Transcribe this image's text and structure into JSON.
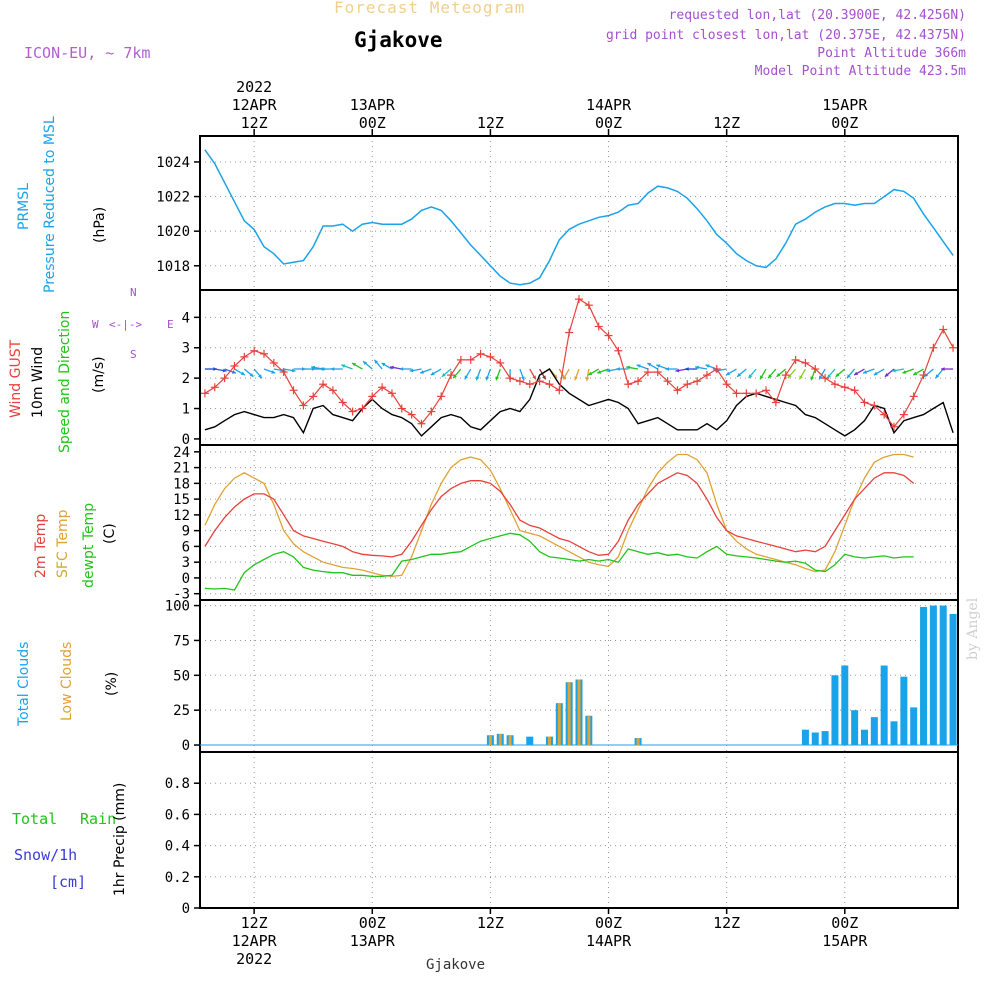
{
  "header": {
    "subtitle": "Forecast Meteogram",
    "title": "Gjakove",
    "model": "ICON-EU, ~ 7km",
    "requested": "requested lon,lat (20.3900E, 42.4256N)",
    "gridpoint": "grid point closest lon,lat (20.375E, 42.4375N)",
    "point_alt": "Point Altitude 366m",
    "model_alt": "Model Point Altitude 423.5m",
    "credit": "by Angel",
    "station": "Gjakove"
  },
  "time_axis": {
    "top_labels": [
      {
        "h": 12,
        "lines": [
          "2022",
          "12APR",
          "12Z"
        ]
      },
      {
        "h": 24,
        "lines": [
          "13APR",
          "00Z"
        ]
      },
      {
        "h": 36,
        "lines": [
          "12Z"
        ]
      },
      {
        "h": 48,
        "lines": [
          "14APR",
          "00Z"
        ]
      },
      {
        "h": 60,
        "lines": [
          "12Z"
        ]
      },
      {
        "h": 72,
        "lines": [
          "15APR",
          "00Z"
        ]
      }
    ],
    "bottom_labels": [
      {
        "h": 12,
        "lines": [
          "12Z",
          "12APR",
          "2022"
        ]
      },
      {
        "h": 24,
        "lines": [
          "00Z",
          "13APR"
        ]
      },
      {
        "h": 36,
        "lines": [
          "12Z"
        ]
      },
      {
        "h": 48,
        "lines": [
          "00Z",
          "14APR"
        ]
      },
      {
        "h": 60,
        "lines": [
          "12Z"
        ]
      },
      {
        "h": 72,
        "lines": [
          "00Z",
          "15APR"
        ]
      }
    ],
    "range_hours": [
      6.5,
      83.5
    ]
  },
  "panel_labels": {
    "pressure": {
      "name": "PRMSL",
      "desc": "Pressure Reduced to MSL",
      "unit": "(hPa)"
    },
    "wind": {
      "gust": "Wind GUST",
      "wind10": "10m Wind",
      "dir": "Speed and Direction",
      "unit": "(m/s)",
      "compass_n": "N",
      "compass_s": "S",
      "compass_w": "W",
      "compass_e": "E",
      "compass_mid": "<-|->"
    },
    "temp": {
      "t2m": "2m Temp",
      "sfc": "SFC Temp",
      "dewpt": "dewpt Temp",
      "unit": "(C)"
    },
    "clouds": {
      "total": "Total Clouds",
      "low": "Low Clouds",
      "unit": "(%)"
    },
    "precip": {
      "rain_a": "Total",
      "rain_b": "Rain",
      "snow": "Snow/1h",
      "snow_unit": "[cm]",
      "label": "1hr Precip (mm)"
    }
  },
  "colors": {
    "pressure": "#1aa3e8",
    "gust": "#e8413c",
    "wind": "#000000",
    "t2m": "#e8413c",
    "sfc": "#dfa234",
    "dew": "#22c31a",
    "total_cloud": "#1aa3e8",
    "low_cloud": "#dfa234",
    "label_pressure": "#1aa3e8",
    "label_wind_gust": "#e8413c",
    "label_wind_dir": "#22c31a",
    "label_temp": "#e8413c",
    "label_sfc": "#dfa234",
    "label_dew": "#22c31a",
    "label_total_cloud": "#1aa3e8",
    "label_low_cloud": "#dfa234",
    "label_rain": "#22c31a",
    "label_snow": "#3b3bd8",
    "label_compass": "#a64fd0"
  },
  "chart_data": [
    {
      "type": "line",
      "name": "pressure",
      "ylabel": "PRMSL Pressure Reduced to MSL (hPa)",
      "ylim": [
        1016.6,
        1025.5
      ],
      "yticks": [
        1018,
        1020,
        1022,
        1024
      ],
      "x_hours": [
        7,
        8,
        9,
        10,
        11,
        12,
        13,
        14,
        15,
        16,
        17,
        18,
        19,
        20,
        21,
        22,
        23,
        24,
        25,
        26,
        27,
        28,
        29,
        30,
        31,
        32,
        33,
        34,
        35,
        36,
        37,
        38,
        39,
        40,
        41,
        42,
        43,
        44,
        45,
        46,
        47,
        48,
        49,
        50,
        51,
        52,
        53,
        54,
        55,
        56,
        57,
        58,
        59,
        60,
        61,
        62,
        63,
        64,
        65,
        66,
        67,
        68,
        69,
        70,
        71,
        72,
        73,
        74,
        75,
        76,
        77,
        78,
        79,
        80,
        81,
        82,
        83
      ],
      "series": [
        {
          "values": [
            1024.7,
            1023.9,
            1022.8,
            1021.7,
            1020.6,
            1020.1,
            1019.1,
            1018.7,
            1018.1,
            1018.2,
            1018.3,
            1019.1,
            1020.3,
            1020.3,
            1020.4,
            1020.0,
            1020.4,
            1020.5,
            1020.4,
            1020.4,
            1020.4,
            1020.7,
            1021.2,
            1021.4,
            1021.2,
            1020.6,
            1019.9,
            1019.2,
            1018.6,
            1018.0,
            1017.4,
            1017.0,
            1016.9,
            1017.0,
            1017.3,
            1018.3,
            1019.5,
            1020.1,
            1020.4,
            1020.6,
            1020.8,
            1020.9,
            1021.1,
            1021.5,
            1021.6,
            1022.2,
            1022.6,
            1022.5,
            1022.3,
            1021.9,
            1021.3,
            1020.6,
            1019.8,
            1019.3,
            1018.7,
            1018.3,
            1018.0,
            1017.9,
            1018.4,
            1019.3,
            1020.4,
            1020.7,
            1021.1,
            1021.4,
            1021.6,
            1021.6,
            1021.5,
            1021.6,
            1021.6,
            1022.0,
            1022.4,
            1022.3,
            1021.9,
            1021.0,
            1020.2,
            1019.4,
            1018.6
          ]
        }
      ]
    },
    {
      "type": "line",
      "name": "wind",
      "ylabel": "Wind GUST / 10m Wind (m/s)",
      "ylim": [
        -0.2,
        4.9
      ],
      "yticks": [
        0,
        1,
        2,
        3,
        4
      ],
      "x_hours": [
        7,
        8,
        9,
        10,
        11,
        12,
        13,
        14,
        15,
        16,
        17,
        18,
        19,
        20,
        21,
        22,
        23,
        24,
        25,
        26,
        27,
        28,
        29,
        30,
        31,
        32,
        33,
        34,
        35,
        36,
        37,
        38,
        39,
        40,
        41,
        42,
        43,
        44,
        45,
        46,
        47,
        48,
        49,
        50,
        51,
        52,
        53,
        54,
        55,
        56,
        57,
        58,
        59,
        60,
        61,
        62,
        63,
        64,
        65,
        66,
        67,
        68,
        69,
        70,
        71,
        72,
        73,
        74,
        75,
        76,
        77,
        78,
        79,
        80,
        81,
        82,
        83
      ],
      "series": [
        {
          "name": "Wind GUST",
          "values": [
            1.5,
            1.7,
            2.0,
            2.4,
            2.7,
            2.9,
            2.8,
            2.5,
            2.2,
            1.6,
            1.1,
            1.4,
            1.8,
            1.6,
            1.2,
            0.9,
            1.0,
            1.4,
            1.7,
            1.5,
            1.0,
            0.8,
            0.5,
            0.9,
            1.4,
            2.1,
            2.6,
            2.6,
            2.8,
            2.7,
            2.5,
            2.0,
            1.9,
            1.8,
            1.9,
            1.8,
            1.6,
            3.5,
            4.6,
            4.4,
            3.7,
            3.4,
            2.9,
            1.8,
            1.9,
            2.2,
            2.2,
            1.9,
            1.6,
            1.8,
            1.9,
            2.1,
            2.3,
            1.8,
            1.5,
            1.5,
            1.5,
            1.6,
            1.2,
            2.1,
            2.6,
            2.5,
            2.3,
            2.0,
            1.8,
            1.7,
            1.6,
            1.2,
            1.1,
            0.8,
            0.4,
            0.8,
            1.4,
            2.1,
            3.0,
            3.6,
            3.0
          ]
        },
        {
          "name": "10m Wind",
          "values": [
            0.3,
            0.4,
            0.6,
            0.8,
            0.9,
            0.8,
            0.7,
            0.7,
            0.8,
            0.7,
            0.2,
            1.0,
            1.1,
            0.8,
            0.7,
            0.6,
            1.0,
            1.3,
            1.0,
            0.8,
            0.7,
            0.5,
            0.1,
            0.4,
            0.7,
            0.8,
            0.7,
            0.4,
            0.3,
            0.6,
            0.9,
            1.0,
            0.9,
            1.3,
            2.1,
            2.3,
            1.8,
            1.5,
            1.3,
            1.1,
            1.2,
            1.3,
            1.2,
            1.0,
            0.5,
            0.6,
            0.7,
            0.5,
            0.3,
            0.3,
            0.3,
            0.5,
            0.3,
            0.6,
            1.1,
            1.4,
            1.5,
            1.4,
            1.3,
            1.2,
            1.1,
            0.8,
            0.7,
            0.5,
            0.3,
            0.1,
            0.3,
            0.6,
            1.1,
            1.0,
            0.2,
            0.6,
            0.7,
            0.8,
            1.0,
            1.2,
            0.2
          ]
        }
      ]
    },
    {
      "type": "line",
      "name": "temperature",
      "ylabel": "2m Temp / SFC Temp / dewpt Temp (C)",
      "ylim": [
        -4.2,
        25.3
      ],
      "yticks": [
        -3,
        0,
        3,
        6,
        9,
        12,
        15,
        18,
        21,
        24
      ],
      "x_hours": [
        7,
        8,
        9,
        10,
        11,
        12,
        13,
        14,
        15,
        16,
        17,
        18,
        19,
        20,
        21,
        22,
        23,
        24,
        25,
        26,
        27,
        28,
        29,
        30,
        31,
        32,
        33,
        34,
        35,
        36,
        37,
        38,
        39,
        40,
        41,
        42,
        43,
        44,
        45,
        46,
        47,
        48,
        49,
        50,
        51,
        52,
        53,
        54,
        55,
        56,
        57,
        58,
        59,
        60,
        61,
        62,
        63,
        64,
        65,
        66,
        67,
        68,
        69,
        70,
        71,
        72,
        73,
        74,
        75,
        76,
        77,
        78,
        79,
        80,
        81,
        82,
        83
      ],
      "series": [
        {
          "name": "2m Temp",
          "values": [
            6,
            9,
            11.5,
            13.5,
            15,
            16,
            16,
            15,
            12,
            9,
            8,
            7.5,
            7,
            6.5,
            6,
            5,
            4.5,
            4.3,
            4.2,
            4.0,
            4.5,
            7,
            10,
            13,
            15.5,
            17,
            18,
            18.5,
            18.5,
            18,
            16.5,
            14,
            11,
            10,
            9.5,
            8.5,
            7.5,
            7,
            6,
            5,
            4.3,
            4.5,
            7,
            11,
            14,
            16,
            18,
            19,
            20,
            19.5,
            18,
            15,
            11.5,
            9,
            8,
            7.5,
            7,
            6.5,
            6,
            5.5,
            5,
            5.3,
            5,
            6,
            9,
            12,
            15,
            17,
            19,
            20,
            20,
            19.5,
            18
          ]
        },
        {
          "name": "SFC Temp",
          "values": [
            10,
            14,
            17,
            19,
            20,
            19,
            18,
            14,
            9,
            6.5,
            5,
            4,
            3,
            2.5,
            2,
            1.8,
            1.5,
            1,
            0.5,
            0.3,
            0.5,
            4,
            9,
            14,
            18,
            21,
            22.5,
            23,
            22.5,
            20.5,
            17,
            13,
            9,
            8.5,
            8,
            7,
            6,
            5,
            4,
            3,
            2.5,
            2.2,
            4,
            9,
            13,
            17,
            20,
            22,
            23.5,
            23.5,
            22.5,
            20,
            14,
            9,
            7,
            5.5,
            4.5,
            4,
            3.5,
            3,
            2.5,
            1.8,
            1.2,
            1.5,
            5,
            10,
            15,
            19,
            22,
            23,
            23.5,
            23.5,
            23
          ]
        },
        {
          "name": "dewpt Temp",
          "values": [
            -2,
            -2.1,
            -2,
            -2.3,
            1,
            2.5,
            3.5,
            4.5,
            5,
            4,
            2,
            1.5,
            1.2,
            1,
            1,
            0.5,
            0.5,
            0.3,
            0.3,
            0.5,
            3.2,
            3.5,
            4,
            4.5,
            4.5,
            4.8,
            5,
            6,
            7,
            7.5,
            8,
            8.5,
            8.2,
            7,
            5,
            4,
            3.8,
            3.5,
            3.2,
            3.5,
            3.2,
            3.5,
            3,
            5.5,
            5,
            4.5,
            4.8,
            4.3,
            4.5,
            4,
            3.8,
            5,
            6,
            4.5,
            4.2,
            4,
            3.8,
            3.5,
            3.2,
            3.0,
            3.2,
            2.8,
            1.5,
            1.2,
            2.5,
            4.5,
            4,
            3.8,
            4,
            4.2,
            3.8,
            4,
            4
          ]
        }
      ]
    },
    {
      "type": "bar",
      "name": "clouds",
      "ylabel": "Total Clouds / Low Clouds (%)",
      "ylim": [
        -5,
        104
      ],
      "yticks": [
        0,
        25,
        50,
        75,
        100
      ],
      "x_hours": [
        36,
        37,
        38,
        40,
        42,
        43,
        44,
        45,
        46,
        51,
        68,
        69,
        70,
        71,
        72,
        73,
        74,
        75,
        76,
        77,
        78,
        79,
        80,
        81,
        82,
        83
      ],
      "series": [
        {
          "name": "Total Clouds",
          "values": [
            7,
            8,
            7,
            6,
            6,
            30,
            45,
            47,
            21,
            5,
            11,
            9,
            10,
            50,
            57,
            25,
            11,
            20,
            57,
            17,
            49,
            27,
            99,
            100,
            100,
            94
          ]
        },
        {
          "name": "Low Clouds",
          "values": [
            7,
            8,
            7,
            0,
            6,
            30,
            45,
            47,
            21,
            5,
            0,
            0,
            0,
            0,
            0,
            0,
            0,
            0,
            0,
            0,
            0,
            0,
            0,
            0,
            0,
            0
          ]
        }
      ]
    },
    {
      "type": "bar",
      "name": "precipitation",
      "ylabel": "1hr Precip (mm)",
      "ylim": [
        0,
        1.0
      ],
      "yticks": [
        0,
        0.2,
        0.4,
        0.6,
        0.8
      ],
      "series": [
        {
          "name": "Total Rain",
          "values": []
        },
        {
          "name": "Snow/1h",
          "values": []
        }
      ]
    }
  ],
  "wind_arrows": {
    "x_hours": [
      7,
      8,
      9,
      10,
      11,
      12,
      13,
      14,
      15,
      16,
      17,
      18,
      19,
      20,
      21,
      22,
      23,
      24,
      25,
      26,
      27,
      28,
      29,
      30,
      31,
      32,
      33,
      34,
      35,
      36,
      37,
      38,
      39,
      40,
      41,
      42,
      43,
      44,
      45,
      46,
      47,
      48,
      49,
      50,
      51,
      52,
      53,
      54,
      55,
      56,
      57,
      58,
      59,
      60,
      61,
      62,
      63,
      64,
      65,
      66,
      67,
      68,
      69,
      70,
      71,
      72,
      73,
      74,
      75,
      76,
      77,
      78,
      79,
      80,
      81,
      82,
      83
    ],
    "dir_deg": [
      90,
      100,
      110,
      120,
      130,
      140,
      110,
      100,
      100,
      90,
      90,
      90,
      280,
      270,
      270,
      290,
      300,
      310,
      320,
      300,
      280,
      270,
      260,
      250,
      240,
      230,
      220,
      210,
      200,
      200,
      200,
      180,
      160,
      150,
      150,
      140,
      150,
      210,
      200,
      190,
      240,
      250,
      260,
      270,
      280,
      290,
      300,
      290,
      270,
      260,
      270,
      280,
      290,
      260,
      240,
      230,
      220,
      210,
      220,
      230,
      220,
      210,
      200,
      210,
      220,
      230,
      220,
      240,
      250,
      240,
      230,
      260,
      250,
      240,
      230,
      220,
      270
    ],
    "colors": [
      "#1a44d8",
      "#2255e0",
      "#3a6ef0",
      "#1aa3e8",
      "#1aa3e8",
      "#1aa3e8",
      "#1aa3e8",
      "#1aa3e8",
      "#1aa3e8",
      "#1aa3e8",
      "#1aa3e8",
      "#1aa3e8",
      "#1aa3e8",
      "#1aa3e8",
      "#1aa3e8",
      "#18c0c0",
      "#22c31a",
      "#1aa3e8",
      "#1aa3e8",
      "#1aa3e8",
      "#7a2ad8",
      "#1aa3e8",
      "#1aa3e8",
      "#1aa3e8",
      "#1aa3e8",
      "#18c0c0",
      "#22c31a",
      "#1aa3e8",
      "#1aa3e8",
      "#1aa3e8",
      "#22c31a",
      "#1aa3e8",
      "#1aa3e8",
      "#e8413c",
      "#9a2a2a",
      "#dfa234",
      "#e07a28",
      "#dfa234",
      "#dfa234",
      "#dfa234",
      "#22c31a",
      "#22c31a",
      "#1aa3e8",
      "#1aa3e8",
      "#22c31a",
      "#1aa3e8",
      "#1aa3e8",
      "#1aa3e8",
      "#1aa3e8",
      "#7a2ad8",
      "#1a44d8",
      "#1aa3e8",
      "#1aa3e8",
      "#1aa3e8",
      "#1aa3e8",
      "#1aa3e8",
      "#18c0c0",
      "#22c31a",
      "#22c31a",
      "#22c31a",
      "#8acd22",
      "#8acd22",
      "#22c31a",
      "#1aa3e8",
      "#18c0c0",
      "#22c31a",
      "#1aa3e8",
      "#7a2ad8",
      "#1aa3e8",
      "#1aa3e8",
      "#7a2ad8",
      "#18c0c0",
      "#22c31a",
      "#22c31a",
      "#1aa3e8",
      "#1aa3e8",
      "#7a2ad8"
    ]
  }
}
